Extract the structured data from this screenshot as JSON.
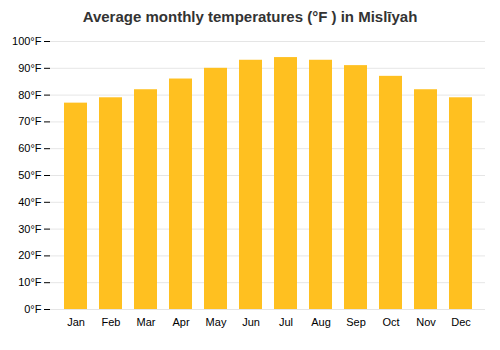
{
  "chart_data": {
    "type": "bar",
    "title": "Average monthly temperatures (°F ) in Mislīyah",
    "categories": [
      "Jan",
      "Feb",
      "Mar",
      "Apr",
      "May",
      "Jun",
      "Jul",
      "Aug",
      "Sep",
      "Oct",
      "Nov",
      "Dec"
    ],
    "values": [
      77,
      79,
      82,
      86,
      90,
      93,
      94,
      93,
      91,
      87,
      82,
      79
    ],
    "color": "#FFC020",
    "ylim": [
      0,
      100
    ],
    "yticks": [
      {
        "value": 0,
        "label": "0°F"
      },
      {
        "value": 10,
        "label": "10°F"
      },
      {
        "value": 20,
        "label": "20°F"
      },
      {
        "value": 30,
        "label": "30°F"
      },
      {
        "value": 40,
        "label": "40°F"
      },
      {
        "value": 50,
        "label": "50°F"
      },
      {
        "value": 60,
        "label": "60°F"
      },
      {
        "value": 70,
        "label": "70°F"
      },
      {
        "value": 80,
        "label": "80°F"
      },
      {
        "value": 90,
        "label": "90°F"
      },
      {
        "value": 100,
        "label": "100°F"
      }
    ],
    "grid": true
  }
}
